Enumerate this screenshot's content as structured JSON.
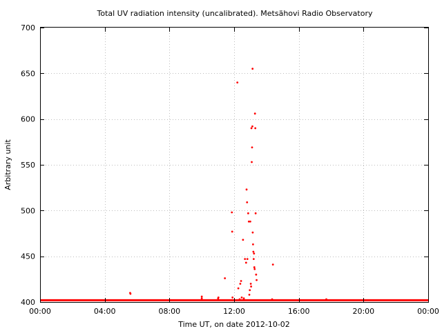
{
  "chart_data": {
    "type": "scatter",
    "title": "Total UV radiation intensity (uncalibrated). Metsähovi Radio Observatory",
    "xlabel": "Time UT, on date 2012-10-02",
    "ylabel": "Arbitrary unit",
    "x_unit": "hours UT",
    "xlim": [
      0,
      24
    ],
    "ylim": [
      400,
      700
    ],
    "x_ticks": [
      0,
      4,
      8,
      12,
      16,
      20,
      24
    ],
    "x_tick_labels": [
      "00:00",
      "04:00",
      "08:00",
      "12:00",
      "16:00",
      "20:00",
      "00:00"
    ],
    "y_ticks": [
      400,
      450,
      500,
      550,
      600,
      650,
      700
    ],
    "y_tick_labels": [
      "400",
      "450",
      "500",
      "550",
      "600",
      "650",
      "700"
    ],
    "grid": true,
    "legend": "none",
    "marker_color": "#ff0000",
    "baseline": {
      "x_start": 0,
      "x_end": 24,
      "y": 402
    },
    "series": [
      {
        "x": [
          5.57,
          5.59,
          10.0,
          10.0,
          11.01,
          11.03,
          11.43,
          11.86,
          11.88,
          11.9,
          12.2,
          12.26,
          12.34,
          12.38,
          12.43,
          12.47,
          12.55,
          12.6,
          12.67,
          12.74,
          12.77,
          12.8,
          12.82,
          12.87,
          12.91,
          12.94,
          12.97,
          13.0,
          13.03,
          13.05,
          13.07,
          13.09,
          13.11,
          13.13,
          13.14,
          13.15,
          13.17,
          13.19,
          13.21,
          13.23,
          13.25,
          13.27,
          13.29,
          13.31,
          13.33,
          13.36,
          13.39,
          14.4,
          14.35,
          17.7
        ],
        "y": [
          410,
          409,
          406,
          404,
          404,
          405,
          426,
          498,
          477,
          405,
          640,
          415,
          403,
          420,
          423,
          405,
          468,
          404,
          447,
          443,
          523,
          509,
          447,
          497,
          488,
          408,
          413,
          488,
          420,
          417,
          590,
          553,
          569,
          592,
          655,
          476,
          463,
          455,
          447,
          453,
          438,
          436,
          606,
          590,
          497,
          430,
          424,
          441,
          403,
          403
        ]
      }
    ]
  }
}
